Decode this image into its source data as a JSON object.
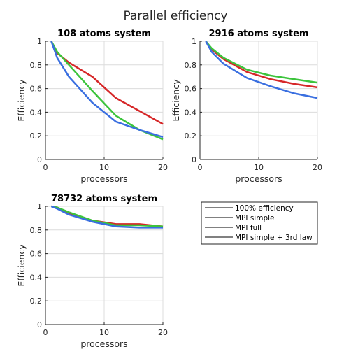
{
  "figure": {
    "title": "Parallel efficiency"
  },
  "legend": {
    "position": "lower-right empty cell",
    "entries": [
      {
        "label": "100% efficiency",
        "color": "#000000"
      },
      {
        "label": "MPI simple",
        "color": "#000000"
      },
      {
        "label": "MPI full",
        "color": "#000000"
      },
      {
        "label": "MPI simple + 3rd law",
        "color": "#000000"
      }
    ]
  },
  "chart_data": [
    {
      "type": "line",
      "title": "108 atoms system",
      "xlabel": "processors",
      "ylabel": "Efficiency",
      "xlim": [
        0,
        20
      ],
      "ylim": [
        0,
        1
      ],
      "xticks": [
        0,
        10,
        20
      ],
      "yticks": [
        0,
        0.2,
        0.4,
        0.6,
        0.8,
        1
      ],
      "grid": true,
      "series": [
        {
          "color": "#d62728",
          "x": [
            1,
            2,
            4,
            8,
            12,
            16,
            20
          ],
          "y": [
            1,
            0.9,
            0.82,
            0.7,
            0.52,
            0.41,
            0.3
          ]
        },
        {
          "color": "#3cc43c",
          "x": [
            1,
            2,
            4,
            8,
            12,
            16,
            20
          ],
          "y": [
            1,
            0.91,
            0.8,
            0.58,
            0.37,
            0.25,
            0.17
          ]
        },
        {
          "color": "#3a6fe0",
          "x": [
            1,
            2,
            4,
            8,
            12,
            16,
            20
          ],
          "y": [
            1,
            0.86,
            0.7,
            0.48,
            0.32,
            0.25,
            0.19
          ]
        }
      ]
    },
    {
      "type": "line",
      "title": "2916 atoms system",
      "xlabel": "processors",
      "ylabel": "Efficiency",
      "xlim": [
        0,
        20
      ],
      "ylim": [
        0,
        1
      ],
      "xticks": [
        0,
        10,
        20
      ],
      "yticks": [
        0,
        0.2,
        0.4,
        0.6,
        0.8,
        1
      ],
      "grid": true,
      "series": [
        {
          "color": "#d62728",
          "x": [
            1,
            2,
            4,
            8,
            12,
            16,
            20
          ],
          "y": [
            1,
            0.93,
            0.85,
            0.74,
            0.68,
            0.64,
            0.61
          ]
        },
        {
          "color": "#3cc43c",
          "x": [
            1,
            2,
            4,
            8,
            12,
            16,
            20
          ],
          "y": [
            1,
            0.94,
            0.86,
            0.76,
            0.71,
            0.68,
            0.65
          ]
        },
        {
          "color": "#3a6fe0",
          "x": [
            1,
            2,
            4,
            8,
            12,
            16,
            20
          ],
          "y": [
            1,
            0.91,
            0.81,
            0.69,
            0.62,
            0.56,
            0.52
          ]
        }
      ]
    },
    {
      "type": "line",
      "title": "78732 atoms system",
      "xlabel": "processors",
      "ylabel": "Efficiency",
      "xlim": [
        0,
        20
      ],
      "ylim": [
        0,
        1
      ],
      "xticks": [
        0,
        10,
        20
      ],
      "yticks": [
        0,
        0.2,
        0.4,
        0.6,
        0.8,
        1
      ],
      "grid": true,
      "series": [
        {
          "color": "#d62728",
          "x": [
            1,
            2,
            4,
            8,
            12,
            16,
            20
          ],
          "y": [
            1,
            0.99,
            0.94,
            0.88,
            0.85,
            0.85,
            0.83
          ]
        },
        {
          "color": "#3cc43c",
          "x": [
            1,
            2,
            4,
            8,
            12,
            16,
            20
          ],
          "y": [
            1,
            0.99,
            0.95,
            0.88,
            0.84,
            0.84,
            0.83
          ]
        },
        {
          "color": "#3a6fe0",
          "x": [
            1,
            2,
            4,
            8,
            12,
            16,
            20
          ],
          "y": [
            1,
            0.98,
            0.93,
            0.87,
            0.83,
            0.82,
            0.82
          ]
        }
      ]
    }
  ]
}
